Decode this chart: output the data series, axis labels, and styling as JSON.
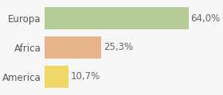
{
  "categories": [
    "Europa",
    "Africa",
    "America"
  ],
  "values": [
    64.0,
    25.3,
    10.7
  ],
  "labels": [
    "64,0%",
    "25,3%",
    "10,7%"
  ],
  "bar_colors": [
    "#b5cc96",
    "#e8b48a",
    "#f0d868"
  ],
  "background_color": "#f7f7f7",
  "xlim": [
    0,
    78
  ],
  "bar_height": 0.78,
  "label_fontsize": 8.5,
  "tick_fontsize": 8.5,
  "grid_color": "#e0e0e0"
}
